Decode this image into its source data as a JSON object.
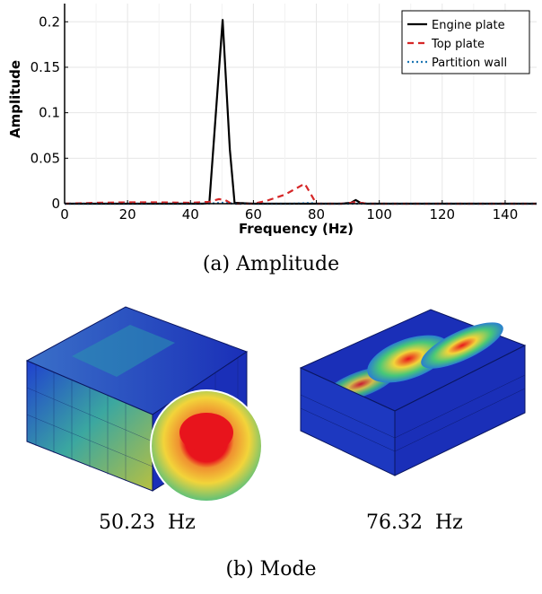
{
  "chart_data": {
    "type": "line",
    "title": "",
    "xlabel": "Frequency (Hz)",
    "ylabel": "Amplitude",
    "xlim": [
      0,
      150
    ],
    "ylim": [
      0,
      0.22
    ],
    "xticks": [
      0,
      20,
      40,
      60,
      80,
      100,
      120,
      140
    ],
    "yticks": [
      0,
      0.05,
      0.1,
      0.15,
      0.2
    ],
    "ytick_labels": [
      "0",
      "0.05",
      "0.1",
      "0.15",
      "0.2"
    ],
    "grid": true,
    "legend_position": "top-right",
    "series": [
      {
        "name": "Engine plate",
        "color": "#000000",
        "style": "solid",
        "x": [
          0,
          44,
          46,
          50.23,
          52.5,
          54,
          60,
          88,
          91,
          92.5,
          94,
          96,
          150
        ],
        "y": [
          0,
          0,
          0.001,
          0.202,
          0.06,
          0.001,
          0,
          0,
          0.001,
          0.004,
          0.001,
          0,
          0
        ]
      },
      {
        "name": "Top plate",
        "color": "#d62728",
        "style": "dashed",
        "x": [
          0,
          10,
          20,
          30,
          40,
          46,
          49,
          51,
          53,
          60,
          64,
          70,
          76.32,
          78,
          80,
          88,
          91,
          92.5,
          94,
          96,
          150
        ],
        "y": [
          0,
          0.001,
          0.0015,
          0.0015,
          0.001,
          0.002,
          0.005,
          0.004,
          0,
          0,
          0.003,
          0.01,
          0.022,
          0.012,
          0,
          0,
          0.001,
          0.002,
          0.001,
          0,
          0
        ]
      },
      {
        "name": "Partition wall",
        "color": "#1f77b4",
        "style": "dotted",
        "x": [
          0,
          44,
          48,
          50,
          52,
          54,
          72,
          76,
          78,
          80,
          150
        ],
        "y": [
          0,
          0,
          0.0005,
          0.001,
          0.0005,
          0,
          0,
          0.0005,
          0.0008,
          0,
          0
        ]
      }
    ]
  },
  "captions": {
    "a": "(a)  Amplitude",
    "b": "(b)  Mode"
  },
  "modes": [
    {
      "frequency_label": "50.23  Hz"
    },
    {
      "frequency_label": "76.32  Hz"
    }
  ],
  "colors": {
    "mesh_blue": "#1a2fb8",
    "mesh_dark": "#0a1660",
    "hot_red": "#e8141c",
    "warm_yellow": "#f2d43a",
    "mid_green": "#48c878"
  }
}
